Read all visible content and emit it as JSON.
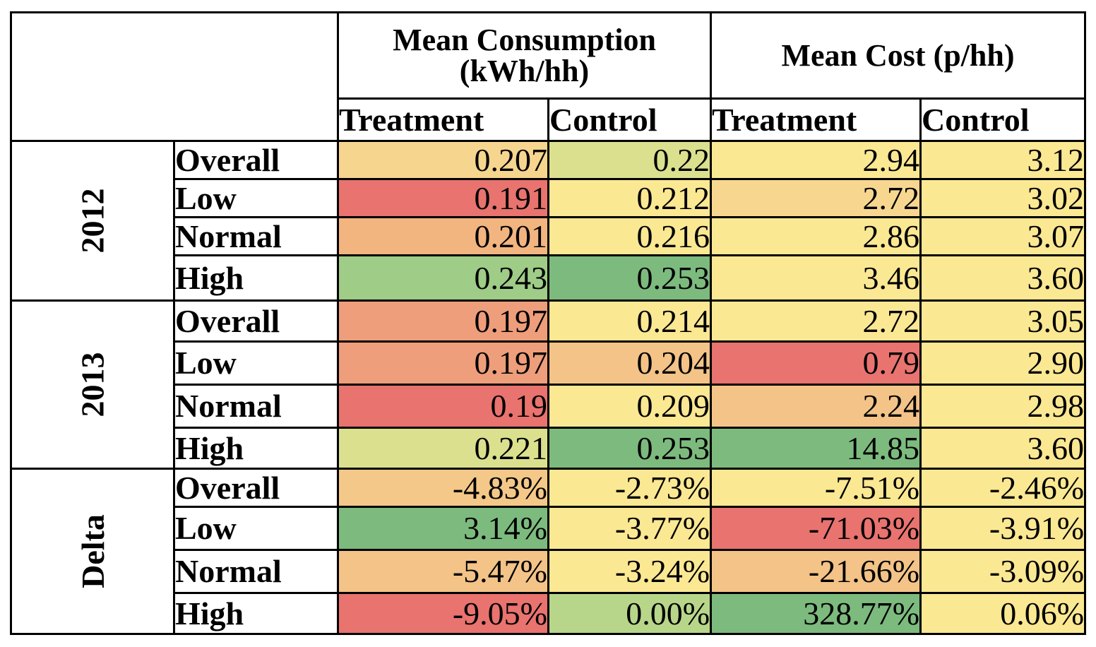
{
  "header": {
    "group1": "Mean Consumption (kWh/hh)",
    "group2": "Mean Cost (p/hh)",
    "sub": [
      "Treatment",
      "Control",
      "Treatment",
      "Control"
    ]
  },
  "groups": [
    {
      "label": "2012",
      "rows": [
        {
          "name": "Overall",
          "values": [
            "0.207",
            "0.22",
            "2.94",
            "3.12"
          ],
          "colors": [
            "#f6d58e",
            "#dbe08f",
            "#fbe893",
            "#fbe893"
          ]
        },
        {
          "name": "Low",
          "values": [
            "0.191",
            "0.212",
            "2.72",
            "3.02"
          ],
          "colors": [
            "#e8736f",
            "#fbe893",
            "#f7d790",
            "#fbe893"
          ]
        },
        {
          "name": "Normal",
          "values": [
            "0.201",
            "0.216",
            "2.86",
            "3.07"
          ],
          "colors": [
            "#f2b580",
            "#fbe893",
            "#fbe893",
            "#fbe893"
          ]
        },
        {
          "name": "High",
          "values": [
            "0.243",
            "0.253",
            "3.46",
            "3.60"
          ],
          "colors": [
            "#9fcc86",
            "#7dba7e",
            "#fbe893",
            "#fbe893"
          ]
        }
      ]
    },
    {
      "label": "2013",
      "rows": [
        {
          "name": "Overall",
          "values": [
            "0.197",
            "0.214",
            "2.72",
            "3.05"
          ],
          "colors": [
            "#ee9e7b",
            "#fbe893",
            "#fbe893",
            "#fbe893"
          ]
        },
        {
          "name": "Low",
          "values": [
            "0.197",
            "0.204",
            "0.79",
            "2.90"
          ],
          "colors": [
            "#ee9e7b",
            "#f3c387",
            "#e8736f",
            "#fbe893"
          ]
        },
        {
          "name": "Normal",
          "values": [
            "0.19",
            "0.209",
            "2.24",
            "2.98"
          ],
          "colors": [
            "#e8736f",
            "#fbe893",
            "#f3c387",
            "#fbe893"
          ]
        },
        {
          "name": "High",
          "values": [
            "0.221",
            "0.253",
            "14.85",
            "3.60"
          ],
          "colors": [
            "#dbe08f",
            "#7dba7e",
            "#7dba7e",
            "#fbe893"
          ]
        }
      ]
    },
    {
      "label": "Delta",
      "rows": [
        {
          "name": "Overall",
          "values": [
            "-4.83%",
            "-2.73%",
            "-7.51%",
            "-2.46%"
          ],
          "colors": [
            "#f4c888",
            "#fbe893",
            "#fbe893",
            "#fbe893"
          ]
        },
        {
          "name": "Low",
          "values": [
            "3.14%",
            "-3.77%",
            "-71.03%",
            "-3.91%"
          ],
          "colors": [
            "#7dba7e",
            "#fbe893",
            "#e8736f",
            "#fbe893"
          ]
        },
        {
          "name": "Normal",
          "values": [
            "-5.47%",
            "-3.24%",
            "-21.66%",
            "-3.09%"
          ],
          "colors": [
            "#f3c387",
            "#fbe893",
            "#f3c387",
            "#fbe893"
          ]
        },
        {
          "name": "High",
          "values": [
            "-9.05%",
            "0.00%",
            "328.77%",
            "0.06%"
          ],
          "colors": [
            "#e8736f",
            "#b8d68a",
            "#7dba7e",
            "#fbe893"
          ]
        }
      ]
    }
  ]
}
